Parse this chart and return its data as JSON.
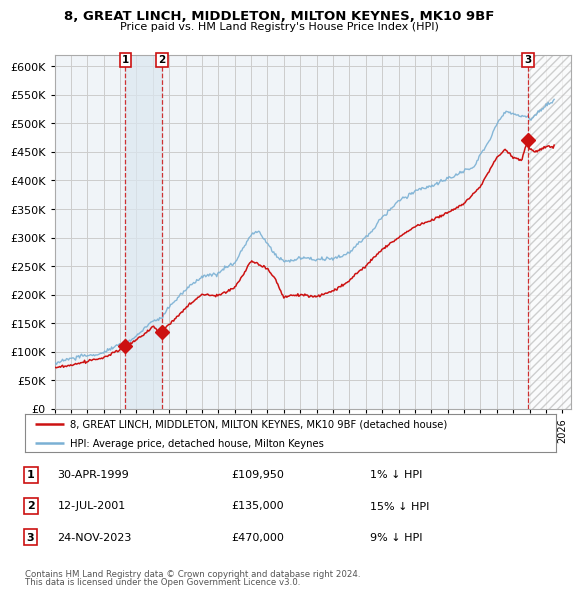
{
  "title": "8, GREAT LINCH, MIDDLETON, MILTON KEYNES, MK10 9BF",
  "subtitle": "Price paid vs. HM Land Registry's House Price Index (HPI)",
  "ylim": [
    0,
    620000
  ],
  "yticks": [
    0,
    50000,
    100000,
    150000,
    200000,
    250000,
    300000,
    350000,
    400000,
    450000,
    500000,
    550000,
    600000
  ],
  "hpi_color": "#7ab0d4",
  "sale_color": "#cc1111",
  "grid_color": "#cccccc",
  "bg_color": "#f0f4f8",
  "transaction_marker_color": "#cc1111",
  "shade_color": "#dce8f0",
  "hatch_color": "#cccccc",
  "transactions": [
    {
      "num": 1,
      "date": "30-APR-1999",
      "price": 109950,
      "pct": "1%",
      "dir": "↓",
      "x": 1999.33
    },
    {
      "num": 2,
      "date": "12-JUL-2001",
      "price": 135000,
      "pct": "15%",
      "dir": "↓",
      "x": 2001.54
    },
    {
      "num": 3,
      "date": "24-NOV-2023",
      "price": 470000,
      "pct": "9%",
      "dir": "↓",
      "x": 2023.9
    }
  ],
  "legend_entries": [
    "8, GREAT LINCH, MIDDLETON, MILTON KEYNES, MK10 9BF (detached house)",
    "HPI: Average price, detached house, Milton Keynes"
  ],
  "footer1": "Contains HM Land Registry data © Crown copyright and database right 2024.",
  "footer2": "This data is licensed under the Open Government Licence v3.0.",
  "xmin": 1995,
  "xmax": 2026.5
}
